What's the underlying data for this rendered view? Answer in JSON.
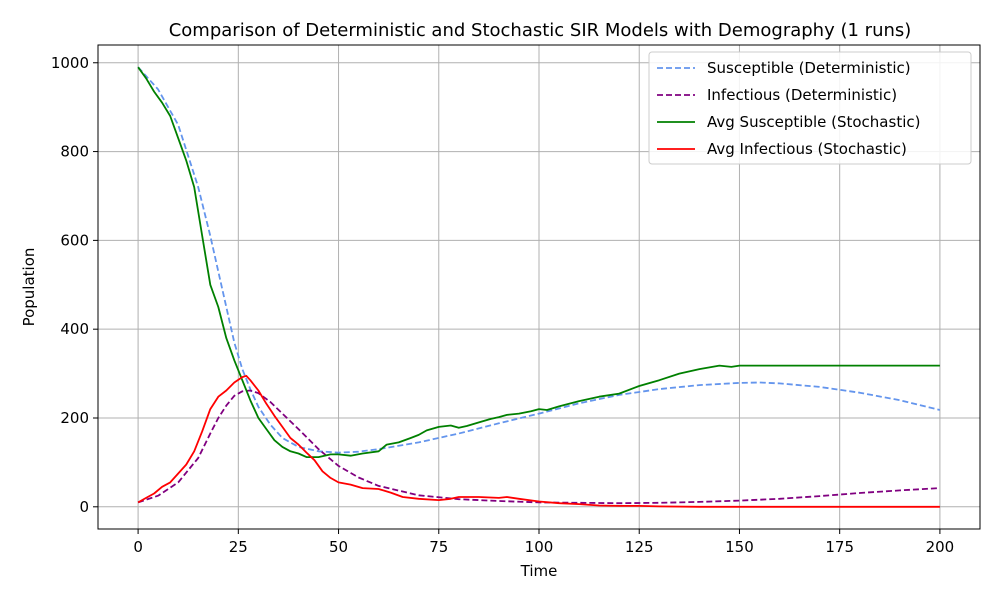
{
  "chart_data": {
    "type": "line",
    "title": "Comparison of Deterministic and Stochastic SIR Models with Demography (1 runs)",
    "xlabel": "Time",
    "ylabel": "Population",
    "xlim": [
      -10,
      210
    ],
    "ylim": [
      -50,
      1040
    ],
    "xticks": [
      0,
      25,
      50,
      75,
      100,
      125,
      150,
      175,
      200
    ],
    "yticks": [
      0,
      200,
      400,
      600,
      800,
      1000
    ],
    "grid": true,
    "legend_position": "top-right",
    "series": [
      {
        "name": "Susceptible (Deterministic)",
        "color": "#6495ED",
        "style": "dashed",
        "x": [
          0,
          5,
          10,
          15,
          18,
          20,
          22,
          24,
          26,
          28,
          30,
          33,
          36,
          40,
          45,
          50,
          55,
          60,
          70,
          80,
          90,
          100,
          110,
          120,
          130,
          140,
          150,
          155,
          160,
          170,
          180,
          190,
          200
        ],
        "y": [
          990,
          940,
          860,
          720,
          610,
          530,
          450,
          370,
          310,
          265,
          225,
          185,
          155,
          135,
          125,
          122,
          124,
          130,
          145,
          165,
          188,
          210,
          233,
          252,
          265,
          274,
          279,
          280,
          278,
          270,
          257,
          240,
          218
        ]
      },
      {
        "name": "Infectious (Deterministic)",
        "color": "#800080",
        "style": "dashed",
        "x": [
          0,
          5,
          10,
          15,
          18,
          20,
          22,
          24,
          26,
          28,
          30,
          33,
          36,
          40,
          45,
          50,
          55,
          60,
          70,
          80,
          90,
          100,
          110,
          120,
          130,
          140,
          150,
          160,
          170,
          180,
          190,
          200
        ],
        "y": [
          10,
          25,
          55,
          110,
          165,
          200,
          228,
          250,
          260,
          262,
          256,
          236,
          210,
          175,
          130,
          92,
          66,
          47,
          26,
          17,
          13,
          10,
          9,
          8,
          9,
          11,
          14,
          18,
          24,
          31,
          37,
          42
        ]
      },
      {
        "name": "Avg Susceptible (Stochastic)",
        "color": "#008000",
        "style": "solid",
        "x": [
          0,
          2,
          4,
          6,
          8,
          10,
          12,
          14,
          16,
          18,
          20,
          22,
          24,
          26,
          28,
          30,
          32,
          34,
          36,
          38,
          40,
          42,
          45,
          48,
          50,
          53,
          56,
          60,
          62,
          65,
          68,
          70,
          72,
          75,
          78,
          80,
          82,
          85,
          88,
          90,
          92,
          95,
          98,
          100,
          102,
          105,
          110,
          115,
          120,
          125,
          130,
          135,
          140,
          145,
          148,
          150,
          175,
          200
        ],
        "y": [
          990,
          965,
          935,
          910,
          880,
          830,
          780,
          720,
          610,
          500,
          450,
          380,
          330,
          285,
          240,
          200,
          175,
          150,
          135,
          125,
          120,
          112,
          112,
          118,
          118,
          115,
          120,
          125,
          140,
          145,
          155,
          162,
          172,
          180,
          183,
          178,
          182,
          190,
          198,
          202,
          207,
          210,
          215,
          220,
          218,
          226,
          238,
          248,
          255,
          272,
          285,
          300,
          310,
          318,
          315,
          318,
          318,
          318
        ]
      },
      {
        "name": "Avg Infectious (Stochastic)",
        "color": "#FF0000",
        "style": "solid",
        "x": [
          0,
          2,
          4,
          6,
          8,
          10,
          12,
          14,
          16,
          18,
          20,
          22,
          24,
          26,
          27,
          28,
          30,
          32,
          34,
          36,
          38,
          40,
          42,
          44,
          46,
          48,
          50,
          53,
          56,
          60,
          63,
          66,
          70,
          75,
          78,
          80,
          85,
          90,
          92,
          95,
          100,
          105,
          110,
          115,
          120,
          125,
          130,
          140,
          150,
          175,
          200
        ],
        "y": [
          10,
          20,
          30,
          45,
          55,
          75,
          95,
          125,
          170,
          220,
          248,
          262,
          280,
          292,
          295,
          285,
          262,
          232,
          205,
          180,
          155,
          140,
          122,
          105,
          80,
          65,
          55,
          50,
          42,
          40,
          32,
          22,
          18,
          15,
          18,
          22,
          22,
          20,
          22,
          18,
          12,
          8,
          6,
          3,
          2,
          2,
          1,
          0,
          0,
          0,
          0
        ]
      }
    ]
  }
}
